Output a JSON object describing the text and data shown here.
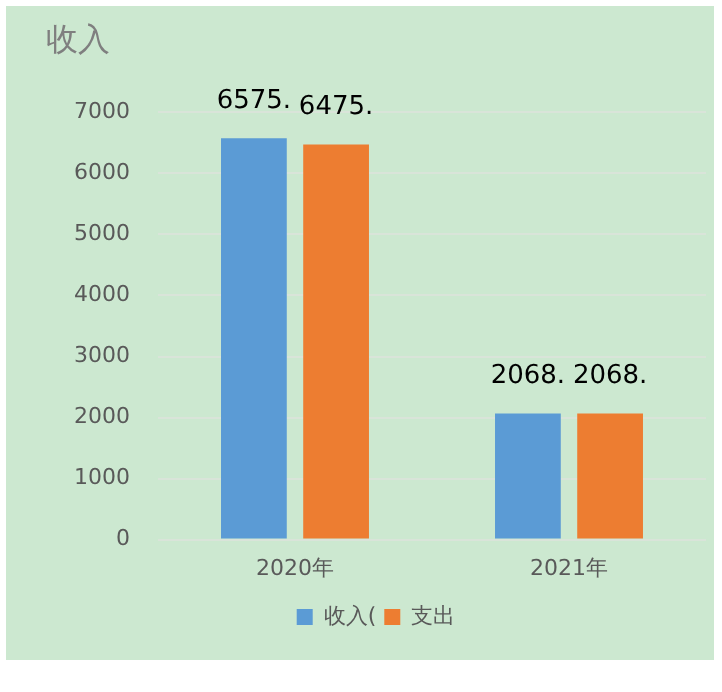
{
  "chart_data": {
    "type": "bar",
    "title": "收入",
    "categories": [
      "2020年",
      "2021年"
    ],
    "series": [
      {
        "name": "收入(",
        "color": "#5b9bd5",
        "values": [
          6575,
          2068
        ],
        "value_labels": [
          "6575.",
          "2068."
        ]
      },
      {
        "name": "支出",
        "color": "#ed7d31",
        "values": [
          6475,
          2068
        ],
        "value_labels": [
          "6475.",
          "2068."
        ]
      }
    ],
    "ylim": [
      0,
      7000
    ],
    "yticks": [
      0,
      1000,
      2000,
      3000,
      4000,
      5000,
      6000,
      7000
    ],
    "grid": "y",
    "legend": "bottom"
  }
}
